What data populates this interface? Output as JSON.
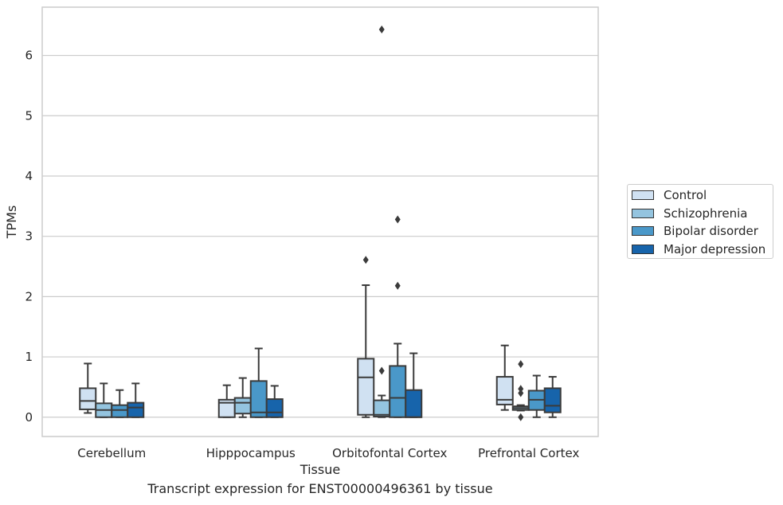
{
  "chart_data": {
    "type": "box",
    "xlabel": "Tissue",
    "ylabel": "TPMs",
    "caption": "Transcript expression for ENST00000496361 by tissue",
    "ylim": [
      -0.32,
      6.8
    ],
    "yticks": [
      0,
      1,
      2,
      3,
      4,
      5,
      6
    ],
    "grid": true,
    "legend_position": "right",
    "categories": [
      "Cerebellum",
      "Hipppocampus",
      "Orbitofontal Cortex",
      "Prefrontal Cortex"
    ],
    "series": [
      {
        "name": "Control",
        "color": "#d0e1f2",
        "boxes": [
          {
            "whislo": 0.07,
            "q1": 0.13,
            "med": 0.27,
            "q3": 0.48,
            "whishi": 0.89,
            "fliers": []
          },
          {
            "whislo": 0.0,
            "q1": 0.0,
            "med": 0.24,
            "q3": 0.29,
            "whishi": 0.53,
            "fliers": []
          },
          {
            "whislo": 0.0,
            "q1": 0.04,
            "med": 0.66,
            "q3": 0.97,
            "whishi": 2.19,
            "fliers": [
              2.61
            ]
          },
          {
            "whislo": 0.12,
            "q1": 0.21,
            "med": 0.29,
            "q3": 0.67,
            "whishi": 1.19,
            "fliers": []
          }
        ]
      },
      {
        "name": "Schizophrenia",
        "color": "#94c4df",
        "boxes": [
          {
            "whislo": 0.0,
            "q1": 0.0,
            "med": 0.12,
            "q3": 0.23,
            "whishi": 0.56,
            "fliers": []
          },
          {
            "whislo": 0.0,
            "q1": 0.06,
            "med": 0.24,
            "q3": 0.32,
            "whishi": 0.65,
            "fliers": []
          },
          {
            "whislo": 0.0,
            "q1": 0.01,
            "med": 0.04,
            "q3": 0.28,
            "whishi": 0.36,
            "fliers": [
              0.77,
              6.43
            ]
          },
          {
            "whislo": 0.11,
            "q1": 0.12,
            "med": 0.15,
            "q3": 0.18,
            "whishi": 0.2,
            "fliers": [
              0.0,
              0.4,
              0.47,
              0.88
            ]
          }
        ]
      },
      {
        "name": "Bipolar disorder",
        "color": "#4a98c9",
        "boxes": [
          {
            "whislo": 0.0,
            "q1": 0.0,
            "med": 0.12,
            "q3": 0.2,
            "whishi": 0.45,
            "fliers": []
          },
          {
            "whislo": 0.0,
            "q1": 0.0,
            "med": 0.08,
            "q3": 0.6,
            "whishi": 1.14,
            "fliers": []
          },
          {
            "whislo": 0.0,
            "q1": 0.0,
            "med": 0.32,
            "q3": 0.85,
            "whishi": 1.22,
            "fliers": [
              2.18,
              3.28
            ]
          },
          {
            "whislo": 0.0,
            "q1": 0.12,
            "med": 0.29,
            "q3": 0.44,
            "whishi": 0.69,
            "fliers": []
          }
        ]
      },
      {
        "name": "Major depression",
        "color": "#1764ab",
        "boxes": [
          {
            "whislo": 0.0,
            "q1": 0.0,
            "med": 0.16,
            "q3": 0.24,
            "whishi": 0.56,
            "fliers": []
          },
          {
            "whislo": 0.0,
            "q1": 0.0,
            "med": 0.08,
            "q3": 0.3,
            "whishi": 0.52,
            "fliers": []
          },
          {
            "whislo": 0.0,
            "q1": 0.0,
            "med": 0.0,
            "q3": 0.45,
            "whishi": 1.06,
            "fliers": []
          },
          {
            "whislo": 0.0,
            "q1": 0.08,
            "med": 0.19,
            "q3": 0.48,
            "whishi": 0.67,
            "fliers": []
          }
        ]
      }
    ]
  }
}
